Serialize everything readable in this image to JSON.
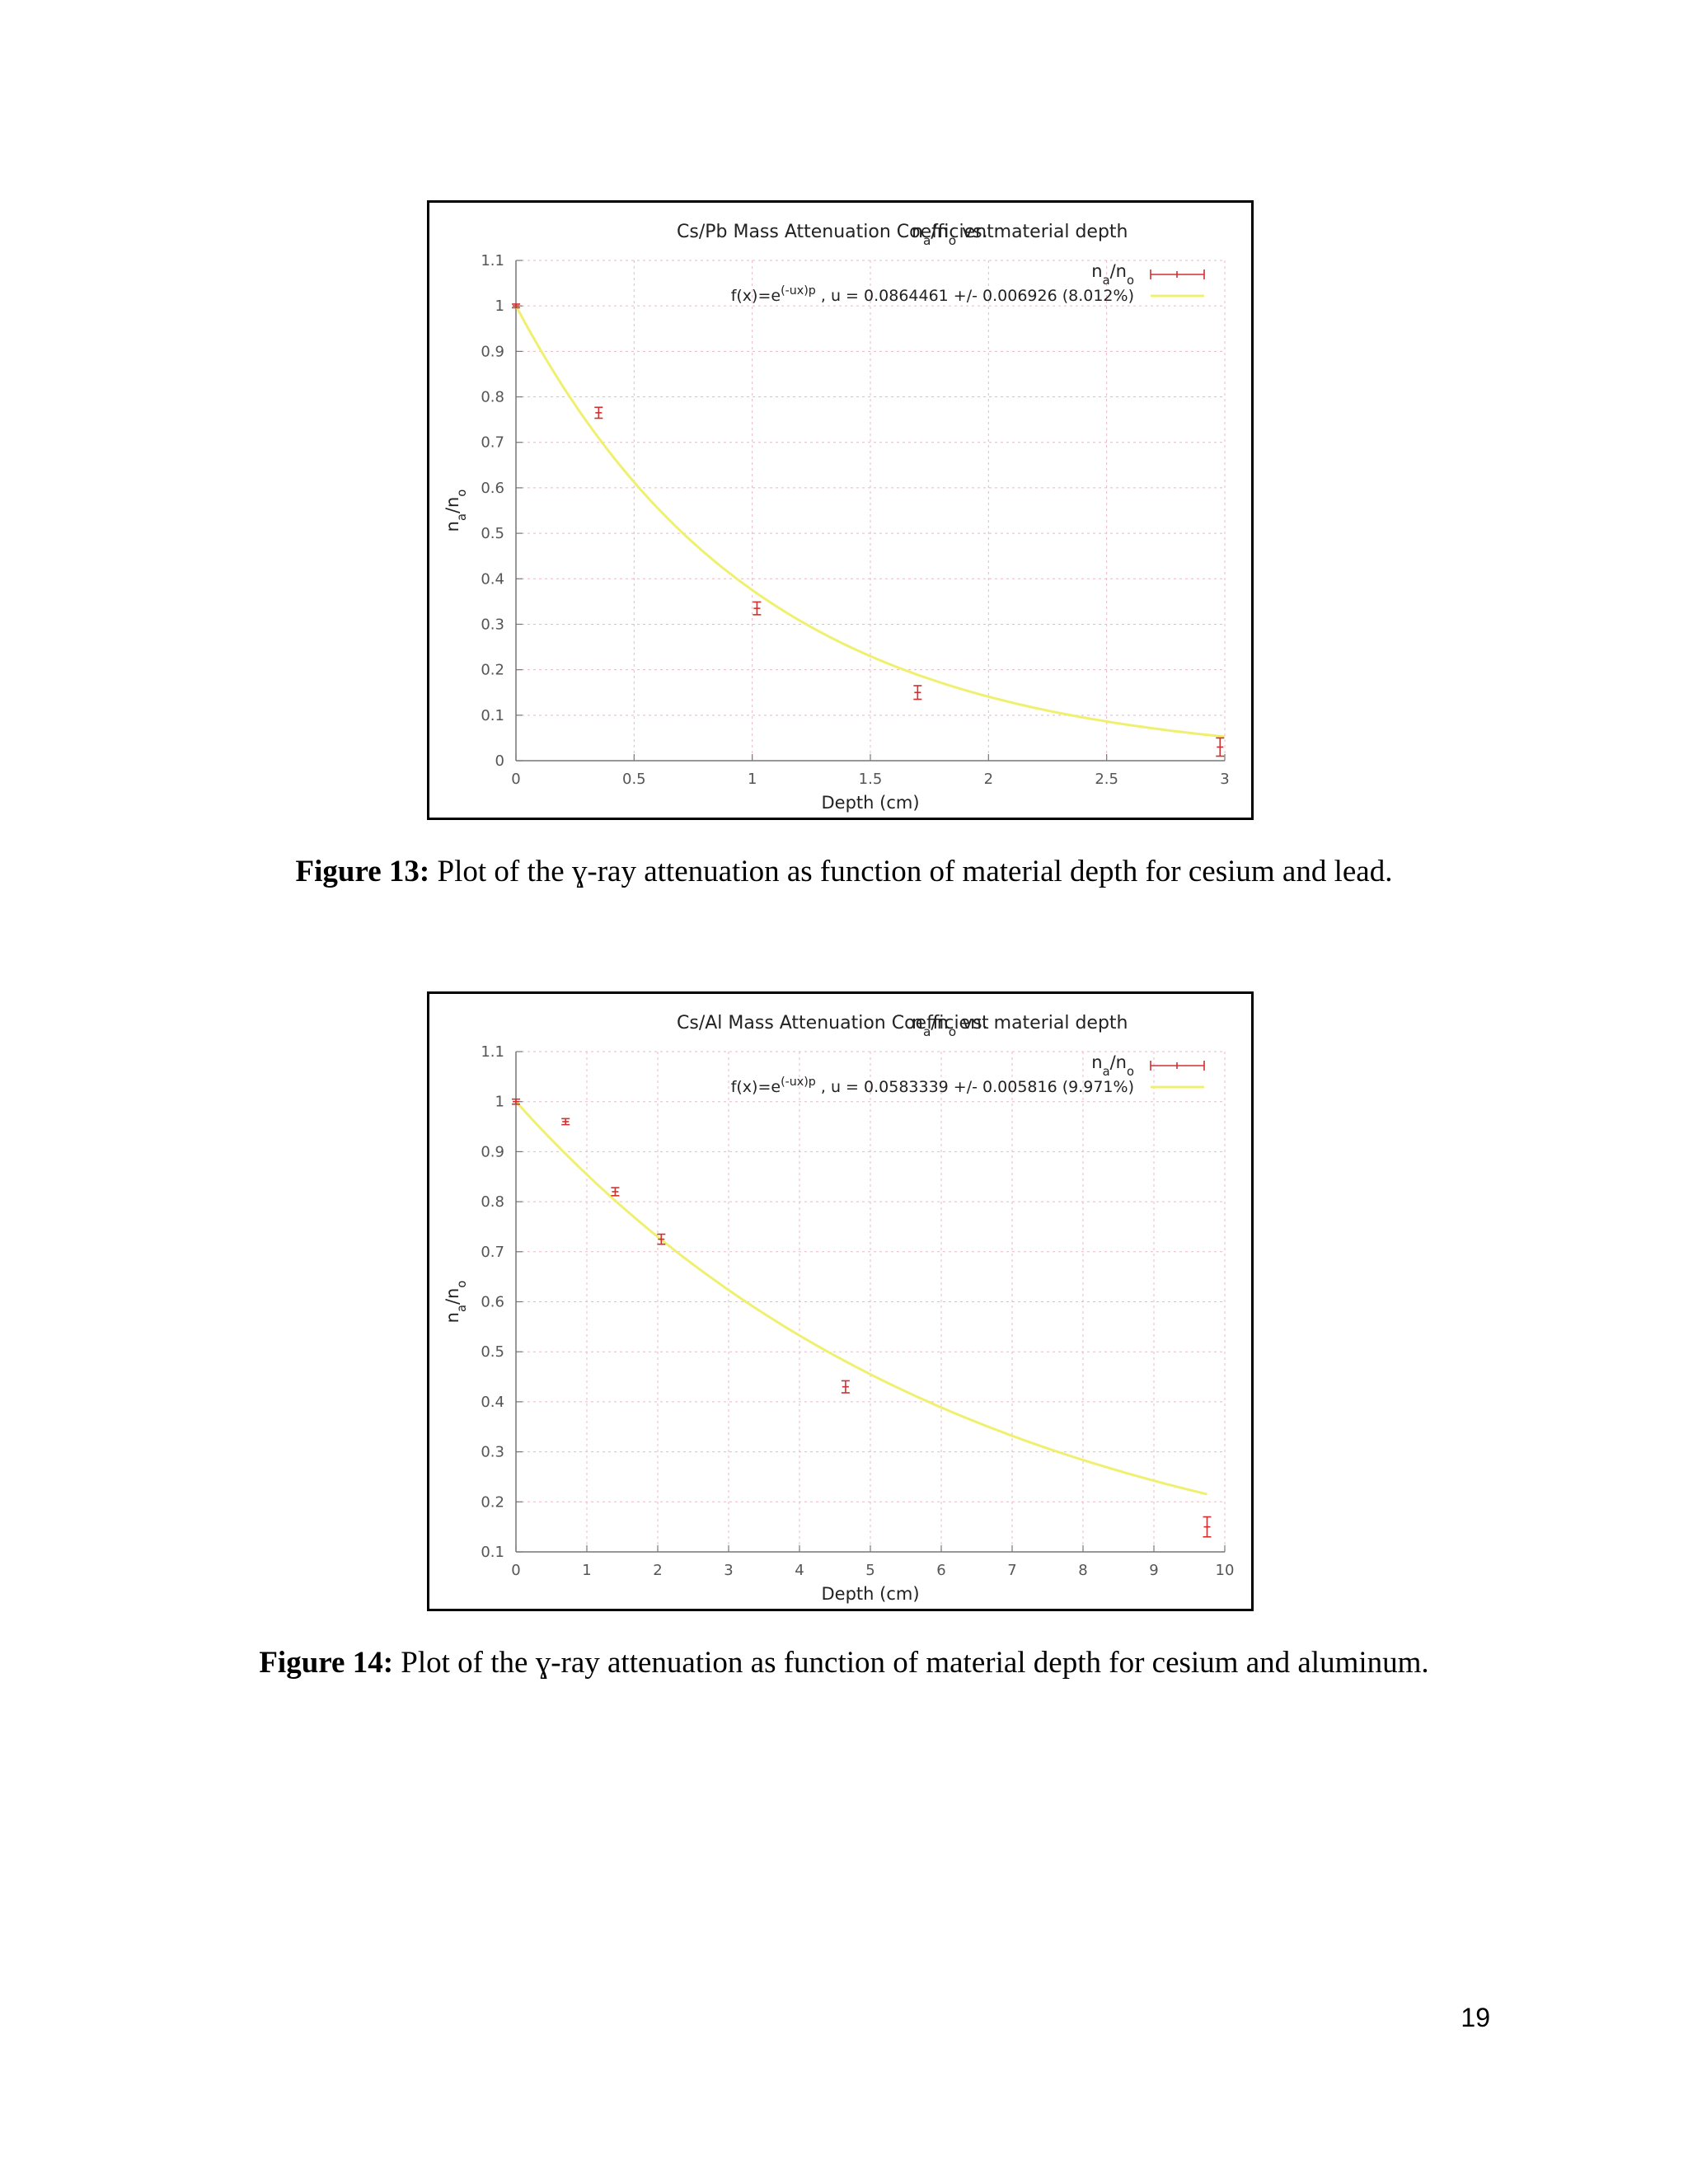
{
  "chart_data": [
    {
      "type": "scatter",
      "title": "Cs/Pb Mass Attenuation Coefficient",
      "subtitle": "na/no vs. material depth",
      "xlabel": "Depth  (cm)",
      "ylabel": "na/no",
      "xlim": [
        0,
        3
      ],
      "ylim": [
        0,
        1.1
      ],
      "xticks": [
        0,
        0.5,
        1,
        1.5,
        2,
        2.5,
        3
      ],
      "yticks": [
        0,
        0.1,
        0.2,
        0.3,
        0.4,
        0.5,
        0.6,
        0.7,
        0.8,
        0.9,
        1,
        1.1
      ],
      "grid": true,
      "legend_position": "top-right",
      "series": [
        {
          "name": "na/no",
          "kind": "errorbar",
          "color": "#d03030",
          "points": [
            {
              "x": 0.0,
              "y": 1.0,
              "err": 0.004
            },
            {
              "x": 0.35,
              "y": 0.765,
              "err": 0.012
            },
            {
              "x": 1.02,
              "y": 0.335,
              "err": 0.014
            },
            {
              "x": 1.7,
              "y": 0.15,
              "err": 0.015
            },
            {
              "x": 2.98,
              "y": 0.03,
              "err": 0.02
            }
          ]
        },
        {
          "name": "f(x)=e(-ux)p , u = 0.0864461 +/- 0.006926 (8.012%)",
          "kind": "fit",
          "color": "#f0f070",
          "function": "exp",
          "density": 11.34,
          "u": 0.0864461,
          "x_range": [
            0,
            3
          ]
        }
      ]
    },
    {
      "type": "scatter",
      "title": "Cs/Al Mass Attenuation Coefficient",
      "subtitle": "na/no vs. material depth",
      "xlabel": "Depth  (cm)",
      "ylabel": "na/no",
      "xlim": [
        0,
        10
      ],
      "ylim": [
        0.1,
        1.1
      ],
      "xticks": [
        0,
        1,
        2,
        3,
        4,
        5,
        6,
        7,
        8,
        9,
        10
      ],
      "yticks": [
        0.1,
        0.2,
        0.3,
        0.4,
        0.5,
        0.6,
        0.7,
        0.8,
        0.9,
        1,
        1.1
      ],
      "grid": true,
      "legend_position": "top-right",
      "series": [
        {
          "name": "na/no",
          "kind": "errorbar",
          "color": "#d03030",
          "points": [
            {
              "x": 0.0,
              "y": 1.0,
              "err": 0.005
            },
            {
              "x": 0.7,
              "y": 0.96,
              "err": 0.006
            },
            {
              "x": 1.4,
              "y": 0.82,
              "err": 0.008
            },
            {
              "x": 2.05,
              "y": 0.725,
              "err": 0.01
            },
            {
              "x": 4.65,
              "y": 0.43,
              "err": 0.012
            },
            {
              "x": 9.75,
              "y": 0.15,
              "err": 0.02
            }
          ]
        },
        {
          "name": "f(x)=e(-ux)p , u = 0.0583339 +/- 0.005816 (9.971%)",
          "kind": "fit",
          "color": "#f0f070",
          "function": "exp",
          "density": 2.7,
          "u": 0.0583339,
          "x_range": [
            0,
            9.75
          ]
        }
      ]
    }
  ],
  "figure1": {
    "caption_lead": "Figure 13:",
    "caption_text": " Plot of the ɣ-ray attenuation as function of material depth for cesium and lead."
  },
  "figure2": {
    "caption_lead": "Figure 14:",
    "caption_text": " Plot of the ɣ-ray attenuation as function of material depth for cesium and aluminum."
  },
  "page_number": "19"
}
